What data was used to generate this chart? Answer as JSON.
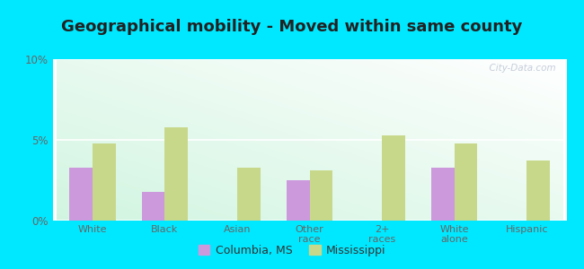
{
  "title": "Geographical mobility - Moved within same county",
  "categories": [
    "White",
    "Black",
    "Asian",
    "Other\nrace",
    "2+\nraces",
    "White\nalone",
    "Hispanic"
  ],
  "columbia_values": [
    3.3,
    1.8,
    0.0,
    2.5,
    0.0,
    3.3,
    0.0
  ],
  "mississippi_values": [
    4.8,
    5.8,
    3.3,
    3.1,
    5.3,
    4.8,
    3.7
  ],
  "columbia_color": "#cc99dd",
  "mississippi_color": "#c8d88a",
  "ylim": [
    0,
    10
  ],
  "yticks": [
    0,
    5,
    10
  ],
  "ytick_labels": [
    "0%",
    "5%",
    "10%"
  ],
  "background_outer": "#00e8ff",
  "legend_labels": [
    "Columbia, MS",
    "Mississippi"
  ],
  "bar_width": 0.32,
  "title_fontsize": 13,
  "title_color": "#222222",
  "watermark": "  City-Data.com",
  "tick_color": "#666666",
  "grid_color": "#ffffff"
}
